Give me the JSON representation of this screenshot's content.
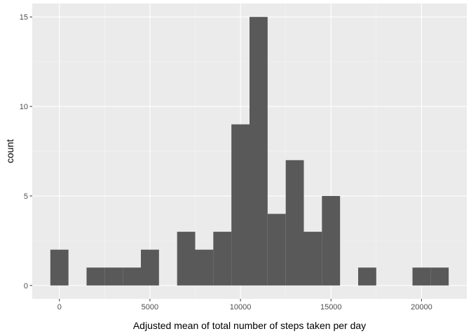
{
  "chart_data": {
    "type": "bar",
    "title": "",
    "xlabel": "Adjusted mean of total number of steps taken per day",
    "ylabel": "count",
    "xlim": [
      -1500,
      22500
    ],
    "ylim": [
      -0.75,
      15.75
    ],
    "xticks": [
      0,
      5000,
      10000,
      15000,
      20000
    ],
    "yticks": [
      0,
      5,
      10,
      15
    ],
    "bin_width": 1000,
    "bins": [
      {
        "center": 0,
        "count": 2
      },
      {
        "center": 1000,
        "count": 0
      },
      {
        "center": 2000,
        "count": 1
      },
      {
        "center": 3000,
        "count": 1
      },
      {
        "center": 4000,
        "count": 1
      },
      {
        "center": 5000,
        "count": 2
      },
      {
        "center": 6000,
        "count": 0
      },
      {
        "center": 7000,
        "count": 3
      },
      {
        "center": 8000,
        "count": 2
      },
      {
        "center": 9000,
        "count": 3
      },
      {
        "center": 10000,
        "count": 9
      },
      {
        "center": 11000,
        "count": 15
      },
      {
        "center": 12000,
        "count": 4
      },
      {
        "center": 13000,
        "count": 7
      },
      {
        "center": 14000,
        "count": 3
      },
      {
        "center": 15000,
        "count": 5
      },
      {
        "center": 16000,
        "count": 0
      },
      {
        "center": 17000,
        "count": 1
      },
      {
        "center": 18000,
        "count": 0
      },
      {
        "center": 19000,
        "count": 0
      },
      {
        "center": 20000,
        "count": 1
      },
      {
        "center": 21000,
        "count": 1
      }
    ],
    "grid": true,
    "legend": "none",
    "colors": {
      "panel_background": "#EBEBEB",
      "major_grid": "#FFFFFF",
      "minor_grid": "#F5F5F5",
      "bar_fill": "#595959",
      "tick_color": "#333333"
    }
  }
}
